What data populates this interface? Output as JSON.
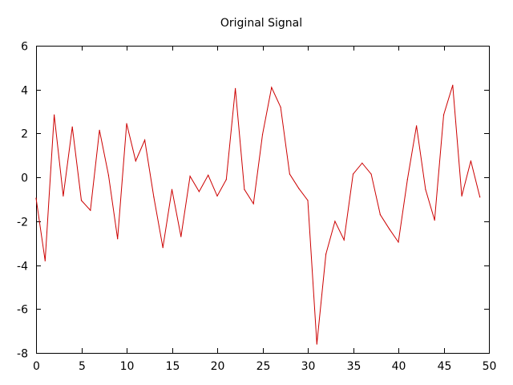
{
  "chart_data": {
    "type": "line",
    "title": "Original Signal",
    "xlabel": "",
    "ylabel": "",
    "xlim": [
      0,
      50
    ],
    "ylim": [
      -8,
      6
    ],
    "x_ticks": [
      0,
      5,
      10,
      15,
      20,
      25,
      30,
      35,
      40,
      45,
      50
    ],
    "y_ticks": [
      6,
      4,
      2,
      0,
      -2,
      -4,
      -6,
      -8
    ],
    "grid": false,
    "legend": "none",
    "series": [
      {
        "color": "#cc0000",
        "x": [
          0,
          1,
          2,
          3,
          4,
          5,
          6,
          7,
          8,
          9,
          10,
          11,
          12,
          13,
          14,
          15,
          16,
          17,
          18,
          19,
          20,
          21,
          22,
          23,
          24,
          25,
          26,
          27,
          28,
          29,
          30,
          31,
          32,
          33,
          34,
          35,
          36,
          37,
          38,
          39,
          40,
          41,
          42,
          43,
          44,
          45,
          46,
          47,
          48,
          49
        ],
        "values": [
          -0.95,
          -3.8,
          2.85,
          -0.85,
          2.3,
          -1.05,
          -1.5,
          2.15,
          0.1,
          -2.8,
          2.45,
          0.75,
          1.7,
          -0.9,
          -3.2,
          -0.55,
          -2.7,
          0.05,
          -0.65,
          0.1,
          -0.85,
          -0.1,
          4.05,
          -0.55,
          -1.2,
          1.95,
          4.1,
          3.2,
          0.15,
          -0.5,
          -1.05,
          -7.6,
          -3.5,
          -2.0,
          -2.85,
          0.15,
          0.65,
          0.15,
          -1.7,
          -2.35,
          -2.95,
          -0.1,
          2.35,
          -0.55,
          -1.95,
          2.85,
          4.2,
          -0.85,
          0.75,
          -0.9
        ]
      }
    ]
  }
}
